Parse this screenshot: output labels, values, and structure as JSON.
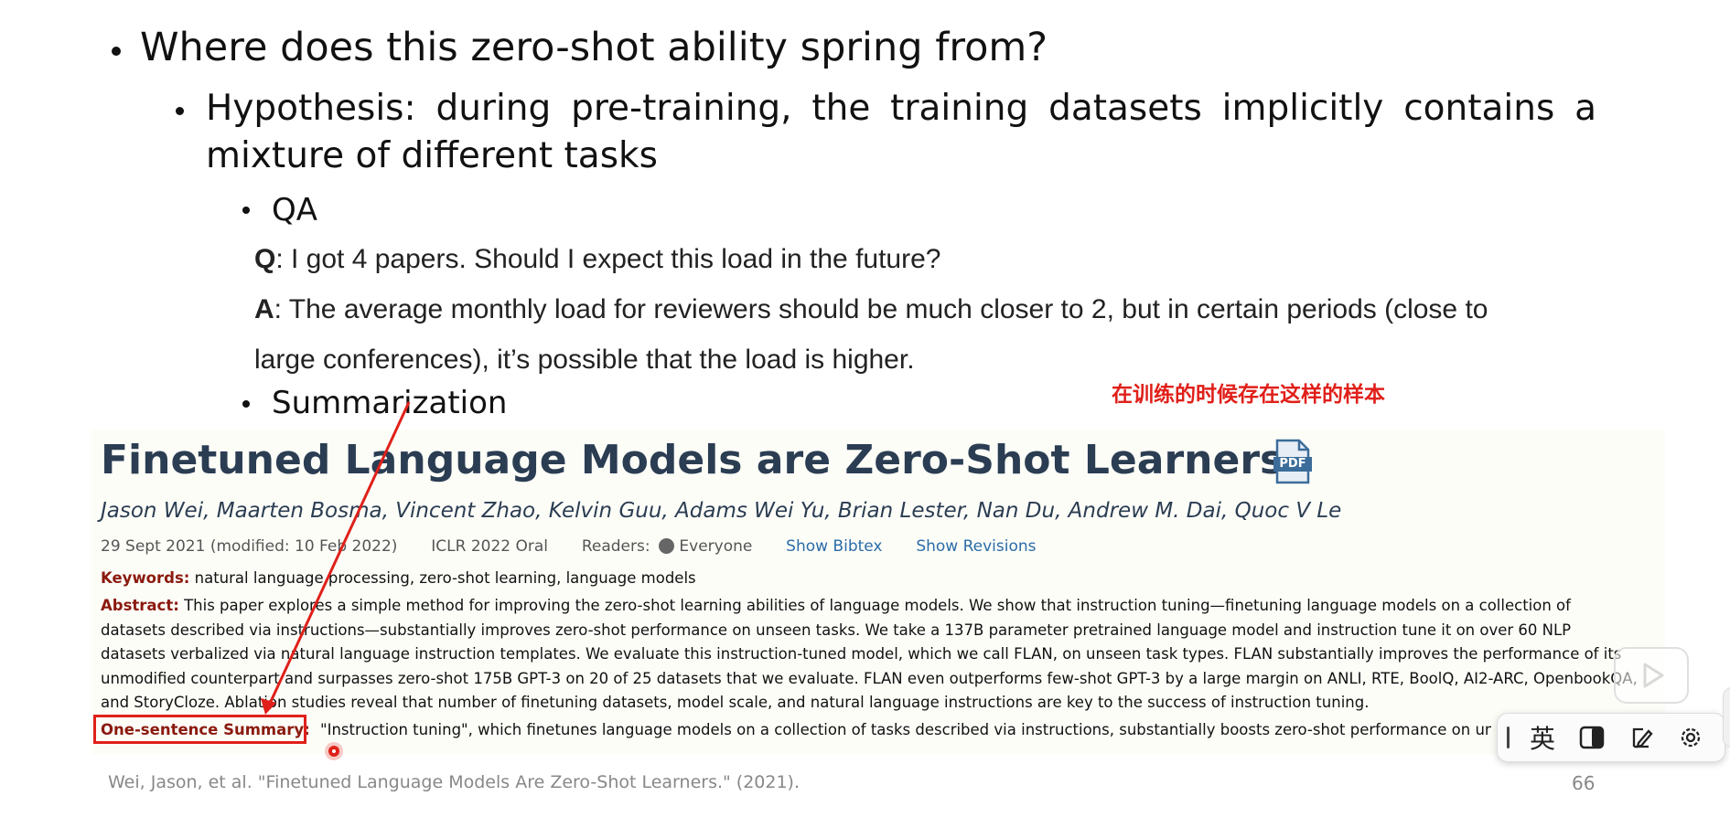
{
  "slide": {
    "heading": "Where does this zero-shot ability spring from?",
    "hypothesis_line1": "Hypothesis: during pre-training, the training datasets implicitly contains a",
    "hypothesis_line2": "mixture of different tasks",
    "sub_qa": "QA",
    "q_label": "Q",
    "q_text": ": I got 4 papers. Should I expect this load in the future?",
    "a_label": "A",
    "a_text_line1": ": The average monthly load for reviewers should be much closer to 2, but in certain periods (close to",
    "a_text_line2": "large conferences), it’s possible that the load is higher.",
    "sub_summarization": "Summarization",
    "annotation_cn": "在训练的时候存在这样的样本",
    "citation": "Wei, Jason, et al. \"Finetuned Language Models Are Zero-Shot Learners.\" (2021).",
    "page_number": "66"
  },
  "paper": {
    "title": "Finetuned Language Models are Zero-Shot Learners",
    "pdf_icon_label": "PDF",
    "authors": "Jason Wei, Maarten Bosma, Vincent Zhao, Kelvin Guu, Adams Wei Yu, Brian Lester, Nan Du, Andrew M. Dai, Quoc V Le",
    "date": "29 Sept 2021 (modified: 10 Feb 2022)",
    "venue": "ICLR 2022 Oral",
    "readers_label": "Readers:",
    "readers_value": "Everyone",
    "show_bibtex": "Show Bibtex",
    "show_revisions": "Show Revisions",
    "keywords_label": "Keywords:",
    "keywords_value": "natural language processing, zero-shot learning, language models",
    "abstract_label": "Abstract:",
    "abstract_line1": "This paper explores a simple method for improving the zero-shot learning abilities of language models. We show that instruction tuning—finetuning language models on a collection of",
    "abstract_line2": "datasets described via instructions—substantially improves zero-shot performance on unseen tasks. We take a 137B parameter pretrained language model and instruction tune it on over 60 NLP",
    "abstract_line3": "datasets verbalized via natural language instruction templates. We evaluate this instruction-tuned model, which we call FLAN, on unseen task types. FLAN substantially improves the performance of its",
    "abstract_line4": "unmodified counterpart and surpasses zero-shot 175B GPT-3 on 20 of 25 datasets that we evaluate. FLAN even outperforms few-shot GPT-3 by a large margin on ANLI, RTE, BoolQ, AI2-ARC, OpenbookQA,",
    "abstract_line5": "and StoryCloze. Ablation studies reveal that number of finetuning datasets, model scale, and natural language instructions are key to the success of instruction tuning.",
    "summary_label": "One-sentence Summary:",
    "summary_value": "\"Instruction tuning\", which finetunes language models on a collection of tasks described via instructions, substantially boosts zero-shot performance on unseen tasks."
  },
  "toolbar": {
    "lang_label": "英"
  },
  "colors": {
    "annotation_red": "#e0201a",
    "paper_title": "#2b3d52",
    "field_label": "#8b1a0f",
    "link_blue": "#2a6ca8"
  }
}
